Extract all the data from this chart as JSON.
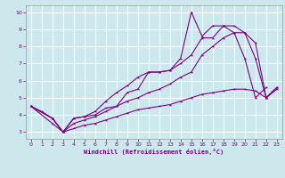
{
  "xlabel": "Windchill (Refroidissement éolien,°C)",
  "background_color": "#cce8ec",
  "grid_color": "#ffffff",
  "line_color": "#800080",
  "xlim": [
    -0.5,
    23.5
  ],
  "ylim": [
    2.6,
    10.4
  ],
  "xticks": [
    0,
    1,
    2,
    3,
    4,
    5,
    6,
    7,
    8,
    9,
    10,
    11,
    12,
    13,
    14,
    15,
    16,
    17,
    18,
    19,
    20,
    21,
    22,
    23
  ],
  "yticks": [
    3,
    4,
    5,
    6,
    7,
    8,
    9,
    10
  ],
  "series": [
    {
      "x": [
        0,
        1,
        2,
        3,
        4,
        5,
        6,
        7,
        8,
        9,
        10,
        11,
        12,
        13,
        14,
        15,
        16,
        17,
        18,
        19,
        20,
        21,
        22
      ],
      "y": [
        4.5,
        4.2,
        3.8,
        3.0,
        3.8,
        3.9,
        4.0,
        4.4,
        4.5,
        5.3,
        5.5,
        6.5,
        6.5,
        6.6,
        7.3,
        10.0,
        8.6,
        9.2,
        9.2,
        8.8,
        7.3,
        5.0,
        5.6
      ]
    },
    {
      "x": [
        0,
        2,
        3,
        4,
        5,
        6,
        7,
        8,
        9,
        10,
        11,
        12,
        13,
        14,
        15,
        16,
        17,
        18,
        19,
        20,
        21,
        22,
        23
      ],
      "y": [
        4.5,
        3.8,
        3.0,
        3.8,
        3.9,
        4.2,
        4.8,
        5.3,
        5.7,
        6.2,
        6.5,
        6.5,
        6.6,
        7.0,
        7.5,
        8.5,
        8.5,
        9.2,
        9.2,
        8.8,
        7.3,
        5.0,
        5.6
      ]
    },
    {
      "x": [
        0,
        2,
        3,
        4,
        5,
        6,
        7,
        8,
        9,
        10,
        11,
        12,
        13,
        14,
        15,
        16,
        17,
        18,
        19,
        20,
        21,
        22,
        23
      ],
      "y": [
        4.5,
        3.8,
        3.0,
        3.5,
        3.7,
        3.9,
        4.2,
        4.5,
        4.8,
        5.0,
        5.3,
        5.5,
        5.8,
        6.2,
        6.5,
        7.5,
        8.0,
        8.5,
        8.8,
        8.8,
        8.2,
        5.0,
        5.6
      ]
    },
    {
      "x": [
        0,
        2,
        3,
        4,
        5,
        6,
        7,
        8,
        9,
        10,
        11,
        12,
        13,
        14,
        15,
        16,
        17,
        18,
        19,
        20,
        21,
        22,
        23
      ],
      "y": [
        4.5,
        3.5,
        3.0,
        3.2,
        3.4,
        3.5,
        3.7,
        3.9,
        4.1,
        4.3,
        4.4,
        4.5,
        4.6,
        4.8,
        5.0,
        5.2,
        5.3,
        5.4,
        5.5,
        5.5,
        5.4,
        5.0,
        5.5
      ]
    }
  ]
}
